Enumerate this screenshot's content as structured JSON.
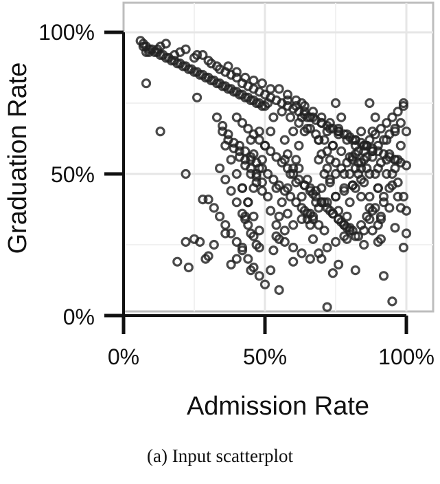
{
  "chart_data": {
    "type": "scatter",
    "title": "",
    "xlabel": "Admission Rate",
    "ylabel": "Graduation Rate",
    "xlim": [
      0,
      100
    ],
    "ylim": [
      0,
      100
    ],
    "x_ticks": [
      "0%",
      "50%",
      "100%"
    ],
    "y_ticks": [
      "0%",
      "50%",
      "100%"
    ],
    "grid": true,
    "legend": "none",
    "marker": "open-circle",
    "marker_color": "#222222",
    "caption": "(a) Input scatterplot",
    "series": [
      {
        "x": [
          6,
          7,
          8,
          9,
          10,
          11,
          12,
          13,
          14,
          15,
          16,
          17,
          18,
          19,
          20,
          21,
          22,
          23,
          24,
          25,
          26,
          27,
          28,
          29,
          30,
          31,
          32,
          33,
          34,
          35,
          36,
          37,
          38,
          39,
          40,
          41,
          42,
          43,
          44,
          45,
          46,
          47,
          48,
          49,
          50,
          7,
          9,
          12,
          15,
          18,
          22,
          25,
          28,
          31,
          34,
          37,
          40,
          43,
          46,
          49,
          52,
          8,
          13,
          20,
          26,
          30,
          33,
          36,
          38,
          40,
          42,
          44,
          46,
          48,
          50,
          52,
          54,
          56,
          58,
          60,
          62,
          64,
          66,
          68,
          70,
          72,
          74,
          76,
          78,
          80,
          82,
          84,
          86,
          88,
          90,
          92,
          94,
          96,
          98,
          100,
          40,
          42,
          44,
          46,
          48,
          50,
          52,
          54,
          56,
          58,
          60,
          62,
          64,
          66,
          68,
          70,
          72,
          74,
          76,
          78,
          80,
          82,
          84,
          86,
          88,
          90,
          92,
          94,
          96,
          98,
          41,
          43,
          45,
          47,
          49,
          51,
          53,
          55,
          57,
          59,
          61,
          63,
          65,
          67,
          69,
          71,
          73,
          75,
          77,
          79,
          81,
          83,
          85,
          87,
          89,
          91,
          93,
          95,
          97,
          99,
          42,
          45,
          48,
          51,
          54,
          57,
          60,
          63,
          66,
          69,
          72,
          75,
          78,
          81,
          84,
          87,
          90,
          93,
          96,
          99,
          44,
          47,
          50,
          53,
          56,
          59,
          62,
          65,
          68,
          71,
          74,
          77,
          80,
          83,
          86,
          89,
          92,
          95,
          98,
          43,
          46,
          49,
          52,
          55,
          58,
          61,
          64,
          67,
          70,
          73,
          76,
          79,
          82,
          85,
          88,
          91,
          94,
          97,
          100,
          45,
          48,
          51,
          54,
          57,
          60,
          63,
          66,
          69,
          72,
          75,
          78,
          81,
          84,
          87,
          90,
          93,
          96,
          99,
          46,
          49,
          52,
          55,
          58,
          61,
          64,
          67,
          70,
          73,
          76,
          79,
          82,
          85,
          88,
          91,
          94,
          97,
          100,
          55,
          58,
          61,
          64,
          67,
          70,
          73,
          76,
          79,
          82,
          85,
          88,
          56,
          59,
          62,
          65,
          68,
          71,
          74,
          77,
          80,
          83,
          86,
          89,
          57,
          60,
          63,
          66,
          69,
          72,
          75,
          78,
          81,
          84,
          87,
          90,
          54,
          57,
          60,
          63,
          66,
          69,
          72,
          75,
          78,
          81,
          84,
          87,
          58,
          61,
          64,
          67,
          70,
          73,
          76,
          79,
          82,
          85,
          88,
          91,
          36,
          38,
          40,
          42,
          44,
          46,
          48,
          34,
          36,
          38,
          40,
          42,
          44,
          46,
          48,
          35,
          37,
          39,
          41,
          43,
          45,
          47,
          49,
          33,
          35,
          37,
          39,
          41,
          43,
          45,
          47,
          30,
          32,
          34,
          36,
          38,
          40,
          42,
          44,
          46,
          48,
          62,
          65,
          68,
          71,
          74,
          77,
          80,
          83,
          86,
          89,
          92,
          95,
          63,
          66,
          69,
          72,
          75,
          78,
          81,
          84,
          87,
          90,
          93,
          96,
          64,
          67,
          70,
          73,
          76,
          79,
          82,
          85,
          88,
          91,
          94,
          97,
          8,
          13,
          19,
          22,
          23,
          26,
          27,
          29,
          30,
          38,
          40,
          42,
          45,
          50,
          52,
          55,
          60,
          72,
          76,
          82,
          92,
          95,
          99,
          100,
          22,
          25,
          28,
          32,
          36,
          43,
          45,
          47,
          53,
          58,
          65,
          70,
          74,
          80,
          85,
          90,
          96,
          98
        ],
        "y": [
          97,
          96,
          95,
          94,
          94,
          93,
          93,
          92,
          92,
          91,
          91,
          90,
          90,
          89,
          89,
          88,
          88,
          87,
          87,
          86,
          86,
          85,
          85,
          84,
          84,
          83,
          83,
          82,
          82,
          81,
          81,
          80,
          80,
          79,
          79,
          78,
          78,
          77,
          77,
          76,
          76,
          75,
          75,
          74,
          74,
          95,
          93,
          94,
          96,
          92,
          94,
          91,
          92,
          89,
          87,
          88,
          86,
          84,
          83,
          82,
          80,
          93,
          95,
          93,
          92,
          90,
          88,
          86,
          85,
          84,
          82,
          81,
          80,
          79,
          78,
          77,
          76,
          75,
          74,
          73,
          72,
          71,
          70,
          69,
          68,
          67,
          66,
          65,
          64,
          63,
          62,
          61,
          60,
          59,
          58,
          57,
          56,
          55,
          54,
          53,
          70,
          68,
          66,
          64,
          62,
          60,
          58,
          56,
          54,
          52,
          50,
          48,
          46,
          44,
          42,
          40,
          38,
          36,
          34,
          32,
          50,
          52,
          54,
          56,
          58,
          60,
          62,
          64,
          66,
          68,
          60,
          58,
          56,
          54,
          52,
          50,
          48,
          46,
          44,
          42,
          40,
          38,
          36,
          34,
          32,
          30,
          48,
          50,
          52,
          54,
          56,
          58,
          60,
          62,
          64,
          66,
          68,
          70,
          72,
          74,
          45,
          55,
          65,
          75,
          45,
          55,
          65,
          75,
          45,
          55,
          65,
          75,
          45,
          55,
          65,
          75,
          45,
          55,
          65,
          75,
          40,
          50,
          60,
          70,
          40,
          50,
          60,
          70,
          40,
          50,
          60,
          70,
          40,
          50,
          60,
          70,
          40,
          50,
          60,
          35,
          45,
          55,
          65,
          35,
          45,
          55,
          65,
          35,
          45,
          55,
          65,
          35,
          45,
          55,
          65,
          35,
          45,
          55,
          65,
          62,
          52,
          42,
          32,
          62,
          52,
          42,
          32,
          62,
          52,
          42,
          32,
          62,
          52,
          42,
          32,
          62,
          52,
          42,
          57,
          47,
          37,
          27,
          57,
          47,
          37,
          27,
          57,
          47,
          37,
          27,
          57,
          47,
          37,
          27,
          57,
          47,
          37,
          80,
          78,
          76,
          74,
          72,
          70,
          68,
          66,
          64,
          62,
          60,
          58,
          72,
          70,
          68,
          66,
          64,
          62,
          60,
          58,
          56,
          54,
          52,
          50,
          30,
          32,
          34,
          36,
          38,
          40,
          42,
          44,
          46,
          48,
          50,
          52,
          28,
          26,
          24,
          22,
          20,
          22,
          24,
          26,
          28,
          30,
          32,
          34,
          76,
          74,
          72,
          70,
          68,
          66,
          64,
          62,
          60,
          58,
          56,
          54,
          60,
          55,
          50,
          45,
          40,
          35,
          30,
          52,
          48,
          44,
          40,
          36,
          32,
          28,
          24,
          65,
          62,
          59,
          56,
          53,
          50,
          47,
          44,
          70,
          67,
          64,
          61,
          58,
          55,
          52,
          49,
          41,
          38,
          35,
          32,
          29,
          26,
          23,
          20,
          17,
          14,
          52,
          48,
          44,
          40,
          36,
          33,
          30,
          28,
          35,
          38,
          42,
          46,
          70,
          66,
          62,
          58,
          54,
          50,
          46,
          42,
          38,
          45,
          50,
          55,
          46,
          43,
          40,
          37,
          34,
          31,
          28,
          25,
          30,
          34,
          38,
          42,
          82,
          65,
          19,
          26,
          17,
          77,
          26,
          20,
          21,
          18,
          20,
          24,
          16,
          11,
          16,
          9,
          19,
          3,
          18,
          16,
          14,
          5,
          24,
          29,
          50,
          27,
          41,
          25,
          29,
          34,
          29,
          25,
          23,
          36,
          34,
          20,
          15,
          31,
          30,
          26,
          31,
          38
        ]
      }
    ]
  }
}
